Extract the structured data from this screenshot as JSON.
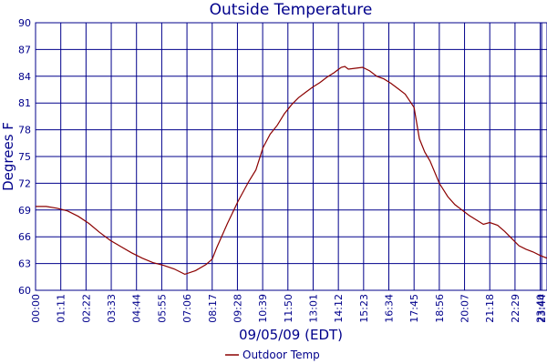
{
  "colors": {
    "axis": "#00008b",
    "series": "#8b0000",
    "background": "#ffffff"
  },
  "chart_data": {
    "type": "line",
    "title": "Outside Temperature",
    "xlabel": "09/05/09 (EDT)",
    "ylabel": "Degrees F",
    "ylim": [
      60,
      90
    ],
    "yticks": [
      60,
      63,
      66,
      69,
      72,
      75,
      78,
      81,
      84,
      87,
      90
    ],
    "xlim": [
      "00:00",
      "23:59"
    ],
    "xticks": [
      "00:00",
      "01:11",
      "02:22",
      "03:33",
      "04:44",
      "05:55",
      "07:06",
      "08:17",
      "09:28",
      "10:39",
      "11:50",
      "13:01",
      "14:12",
      "15:23",
      "16:34",
      "17:45",
      "18:56",
      "20:07",
      "21:18",
      "22:29",
      "23:40",
      "23:44"
    ],
    "grid": true,
    "legend_position": "bottom-center",
    "series": [
      {
        "name": "Outdoor Temp",
        "x": [
          "00:00",
          "00:30",
          "01:00",
          "01:30",
          "02:00",
          "02:30",
          "03:00",
          "03:30",
          "04:00",
          "04:30",
          "05:00",
          "05:30",
          "06:00",
          "06:30",
          "07:00",
          "07:30",
          "08:00",
          "08:17",
          "08:30",
          "09:00",
          "09:30",
          "10:00",
          "10:20",
          "10:40",
          "11:00",
          "11:20",
          "11:40",
          "12:00",
          "12:20",
          "12:40",
          "13:00",
          "13:20",
          "13:40",
          "14:00",
          "14:10",
          "14:20",
          "14:30",
          "14:40",
          "15:00",
          "15:20",
          "15:40",
          "16:00",
          "16:20",
          "16:40",
          "17:00",
          "17:20",
          "17:45",
          "18:00",
          "18:15",
          "18:30",
          "18:56",
          "19:20",
          "19:40",
          "20:00",
          "20:20",
          "20:40",
          "21:00",
          "21:18",
          "21:40",
          "22:00",
          "22:20",
          "22:40",
          "23:00",
          "23:20",
          "23:40",
          "23:59"
        ],
        "y": [
          69.4,
          69.4,
          69.2,
          68.9,
          68.3,
          67.5,
          66.5,
          65.6,
          64.9,
          64.2,
          63.6,
          63.1,
          62.8,
          62.4,
          61.8,
          62.2,
          62.9,
          63.5,
          64.8,
          67.5,
          70.0,
          72.2,
          73.5,
          76.0,
          77.5,
          78.5,
          79.8,
          80.8,
          81.6,
          82.2,
          82.8,
          83.3,
          83.9,
          84.4,
          84.7,
          85.0,
          85.1,
          84.8,
          84.9,
          85.0,
          84.6,
          84.0,
          83.7,
          83.2,
          82.6,
          82.0,
          80.5,
          77.0,
          75.5,
          74.5,
          72.0,
          70.5,
          69.6,
          69.0,
          68.4,
          67.9,
          67.4,
          67.6,
          67.3,
          66.6,
          65.8,
          65.0,
          64.6,
          64.3,
          63.9,
          63.6
        ]
      }
    ]
  }
}
